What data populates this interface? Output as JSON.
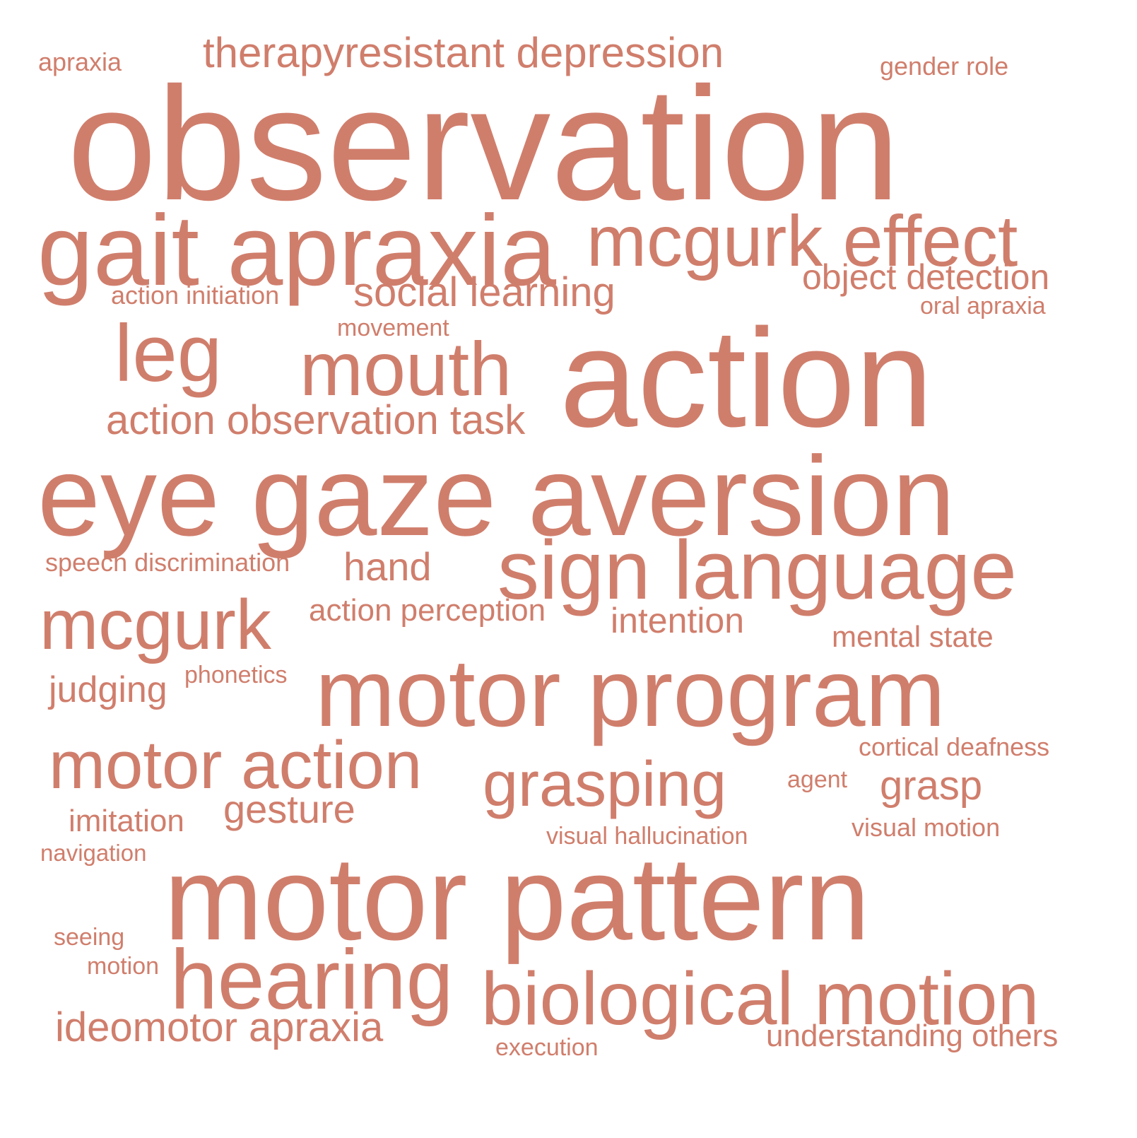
{
  "style": {
    "color": "#d07e6c",
    "background": "#ffffff"
  },
  "words": [
    "observation",
    "action",
    "eye gaze aversion",
    "motor pattern",
    "motor program",
    "gait apraxia",
    "mcgurk effect",
    "sign language",
    "biological motion",
    "hearing",
    "mouth",
    "leg",
    "mcgurk",
    "motor action",
    "grasping",
    "therapyresistant depression",
    "social learning",
    "action observation task",
    "object detection",
    "ideomotor apraxia",
    "gesture",
    "grasp",
    "hand",
    "understanding others",
    "intention",
    "judging",
    "action perception",
    "mental state",
    "imitation",
    "cortical deafness",
    "visual motion",
    "gender role",
    "action initiation",
    "oral apraxia",
    "speech discrimination",
    "apraxia",
    "movement",
    "phonetics",
    "agent",
    "visual hallucination",
    "navigation",
    "seeing",
    "motion",
    "execution"
  ]
}
